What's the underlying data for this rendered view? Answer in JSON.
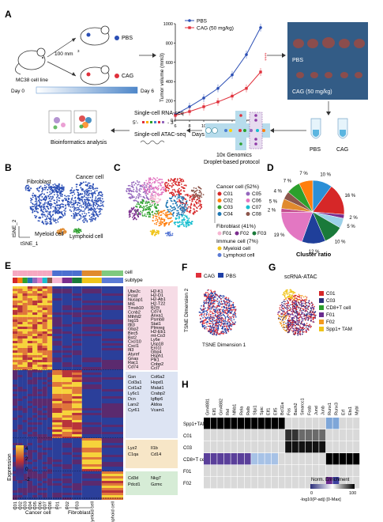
{
  "panel_letters": [
    "A",
    "B",
    "C",
    "D",
    "E",
    "F",
    "G",
    "H"
  ],
  "panel_a": {
    "cell_line": "MC38 cell line",
    "cells": "100 mm",
    "cells_sup": "3",
    "group_pbs": "PBS",
    "group_cag": "CAG",
    "day0": "Day 0",
    "day6": "Day 6",
    "photo_pbs": "PBS",
    "photo_cag": "CAG (50 mg/kg)",
    "tube_pbs": "PBS",
    "tube_cag": "CAG",
    "chip_line1": "10x Genomics",
    "chip_line2": "Droplet-based protocol",
    "rna": "Single-cell RNA-seq",
    "rna_seq": "5'-",
    "rna_seq_end": "- 3'",
    "atac": "Single-cell ATAC-seq",
    "bioinfo": "Bioinformatics analysis"
  },
  "panel_b": {
    "fibroblast": "Fibroblast",
    "cancer": "Cancer cell",
    "myeloid": "Myeloid cell",
    "lymphoid": "Lymphoid cell",
    "x_axis": "tSNE_1",
    "y_axis": "tSNE_2"
  },
  "panel_c": {
    "cancer_head": "Cancer cell (52%)",
    "cancer_items": [
      "C01",
      "C05",
      "C02",
      "C06",
      "C03",
      "C07",
      "C04",
      "C08"
    ],
    "fibro_head": "Fibroblast (41%)",
    "fibro_items": [
      "F01",
      "F02",
      "F03"
    ],
    "immune_head": "Immune cell (7%)",
    "immune_items": [
      "Myeloid cell",
      "Lymphoid cell"
    ],
    "colors": {
      "C01": "#d62728",
      "C02": "#ff7f0e",
      "C03": "#2ca02c",
      "C04": "#1f77b4",
      "C05": "#9467bd",
      "C06": "#e377c2",
      "C07": "#17becf",
      "C08": "#8c564b",
      "F01": "#f7b6d2",
      "F02": "#7b2d8e",
      "F03": "#1a7a3a",
      "Myeloid cell": "#f0c419",
      "Lymphoid cell": "#5b7bd5"
    }
  },
  "panel_d": {
    "title": "Cluster ratio",
    "labels": [
      "10 %",
      "16 %",
      "2 %",
      "5 %",
      "10 %",
      "12 %",
      "19 %",
      "2 %",
      "5 %",
      "4 %",
      "7 %",
      "7 %"
    ]
  },
  "chart_data": {
    "type": "line",
    "xlabel": "Days",
    "ylabel": "Tumor volume (mm3)",
    "x": [
      6,
      8,
      10,
      12,
      14,
      16,
      18
    ],
    "xlim": [
      6,
      18
    ],
    "ylim": [
      0,
      1000
    ],
    "yticks": [
      0,
      200,
      400,
      600,
      800,
      1000
    ],
    "significance": "****",
    "series": [
      {
        "name": "PBS",
        "color": "#2b4fb5",
        "values": [
          60,
          140,
          230,
          330,
          470,
          680,
          960
        ]
      },
      {
        "name": "CAG (50 mg/kg)",
        "color": "#e0303b",
        "values": [
          50,
          90,
          140,
          190,
          250,
          330,
          500
        ]
      }
    ]
  },
  "panel_e": {
    "legend_cell": "cell",
    "legend_subtype": "subtype",
    "expression_label": "Expression",
    "scale": [
      "4",
      "2",
      "0",
      "-2"
    ],
    "genes_c1": [
      "Ube2c",
      "Pclaf",
      "Nusap1",
      "Mt1",
      "Tmsb10",
      "Ccnb2",
      "Mthfd2",
      "Isg15",
      "Ifit3",
      "Gbp2",
      "Birc5",
      "Bst2",
      "Cxcl10",
      "Cxcl1",
      "Ifi3",
      "Atyref",
      "Gnas",
      "Rac1",
      "Cd74"
    ],
    "genes_c2": [
      "H2-K1",
      "H2-D1",
      "H2-Ab1",
      "H2-T22",
      "B2m",
      "Cd74",
      "Anxa1",
      "Psmb8",
      "Stat1",
      "Plmreg",
      "H2-Eb1",
      "mt-Co3",
      "Ly6e",
      "Usp18",
      "Ero1l",
      "Gbp4",
      "Hsph1",
      "Plk1",
      "Cnbp2",
      "Ccl7"
    ],
    "genes_f1": [
      "Gsn",
      "Col3a1",
      "Col1a2",
      "Ly6c1",
      "Dcn",
      "Lars2",
      "Cyr61"
    ],
    "genes_f2": [
      "Col6a2",
      "Hspd1",
      "Malat1",
      "Crabp2",
      "Igfbp6",
      "Aldoa",
      "Vcam1"
    ],
    "genes_m1": [
      "Lyz2",
      "C1qa"
    ],
    "genes_m2": [
      "Il1b",
      "Cd14"
    ],
    "genes_l1": [
      "Cd3d",
      "Pdcd1"
    ],
    "genes_l2": [
      "Nkg7",
      "Gzmc"
    ],
    "x_labels": [
      "C01",
      "C02",
      "C03",
      "C04",
      "C05",
      "C06",
      "C07",
      "C08",
      "F01",
      "F02",
      "F03",
      "Myeloid cell",
      "Lymphoid cell"
    ],
    "group_cancer": "Cancer cell",
    "group_fibro": "Fibroblast"
  },
  "panel_f": {
    "legend": [
      "CAG",
      "PBS"
    ],
    "legend_colors": [
      "#e0303b",
      "#1f3fa5"
    ],
    "x_axis": "TSNE Dimension 1",
    "y_axis": "TSNE Dimension 2"
  },
  "panel_g": {
    "title": "scRNA-ATAC",
    "legend": [
      "C01",
      "C03",
      "CD8+T cell",
      "F01",
      "F02",
      "Spp1+ TAM"
    ],
    "legend_colors": [
      "#d62728",
      "#2c2f7a",
      "#2ca02c",
      "#6a2c8e",
      "#f39a1f",
      "#f0c419"
    ]
  },
  "panel_h": {
    "columns": [
      "Gm4881",
      "Elf1",
      "Gm4882",
      "Rel",
      "Nfkb1",
      "Rela",
      "Relb",
      "Sfpi1",
      "Spic",
      "Elf1",
      "Elf5",
      "Bcl11a",
      "Fos",
      "Bach2",
      "Smarcc1",
      "Fosb",
      "Jund",
      "Junb",
      "Runx1",
      "Runx3",
      "Erf",
      "Ets1",
      "Mybl"
    ],
    "rows": [
      "Spp1+TAM",
      "C01",
      "C03",
      "CD8+T cell",
      "F01",
      "F02"
    ],
    "legend_title": "Norm. Enrichment",
    "legend_min": "0",
    "legend_max": "100",
    "legend_sub": "-log10(P-adj) [0-Max]"
  }
}
